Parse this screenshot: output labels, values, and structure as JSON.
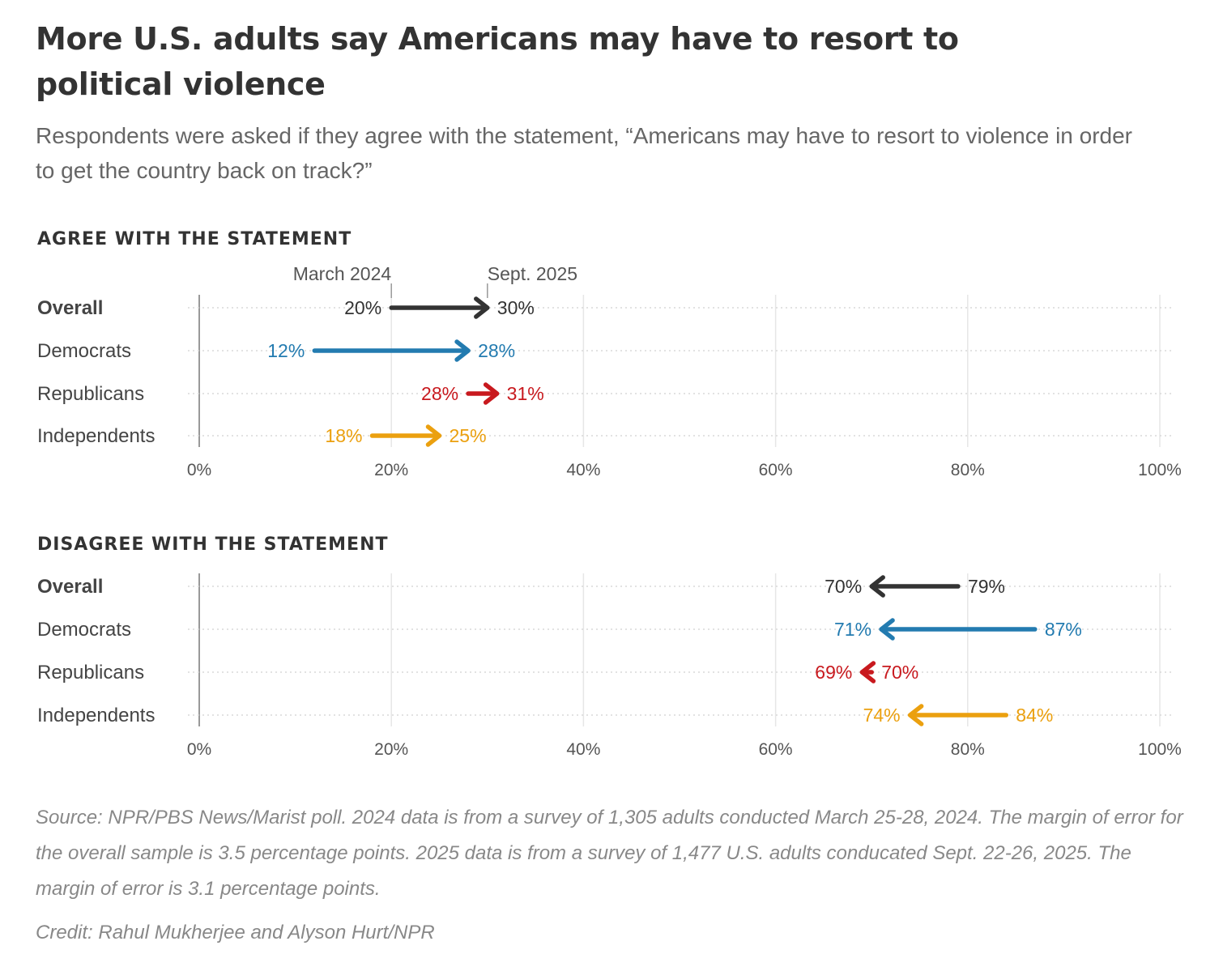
{
  "title": "More U.S. adults say Americans may have to resort to political violence",
  "subtitle": "Respondents were asked if they agree with the statement, “Americans may have to resort to violence in order to get the country back on track?”",
  "footer": "Source: NPR/PBS News/Marist poll. 2024 data is from a survey of 1,305 adults conducted March 25-28, 2024. The margin of error for the overall sample is 3.5 percentage points. 2025 data is from a survey of 1,477 U.S. adults conducated Sept. 22-26, 2025. The margin of error is 3.1 percentage points.",
  "credit": "Credit: Rahul Mukherjee and Alyson Hurt/NPR",
  "colors": {
    "Overall": "#333333",
    "Democrats": "#237bb0",
    "Republicans": "#c8191e",
    "Independents": "#eba00f"
  },
  "chart_data": [
    {
      "type": "arrow",
      "title": "AGREE WITH THE STATEMENT",
      "period_labels": [
        "March 2024",
        "Sept. 2025"
      ],
      "xlim": [
        0,
        100
      ],
      "x_ticks": [
        "0%",
        "20%",
        "40%",
        "60%",
        "80%",
        "100%"
      ],
      "categories": [
        "Overall",
        "Democrats",
        "Republicans",
        "Independents"
      ],
      "series": [
        {
          "name": "March 2024",
          "values": [
            20,
            12,
            28,
            18
          ]
        },
        {
          "name": "Sept. 2025",
          "values": [
            30,
            28,
            31,
            25
          ]
        }
      ]
    },
    {
      "type": "arrow",
      "title": "DISAGREE WITH THE STATEMENT",
      "xlim": [
        0,
        100
      ],
      "x_ticks": [
        "0%",
        "20%",
        "40%",
        "60%",
        "80%",
        "100%"
      ],
      "categories": [
        "Overall",
        "Democrats",
        "Republicans",
        "Independents"
      ],
      "series": [
        {
          "name": "March 2024",
          "values": [
            79,
            87,
            70,
            84
          ]
        },
        {
          "name": "Sept. 2025",
          "values": [
            70,
            71,
            69,
            74
          ]
        }
      ]
    }
  ]
}
